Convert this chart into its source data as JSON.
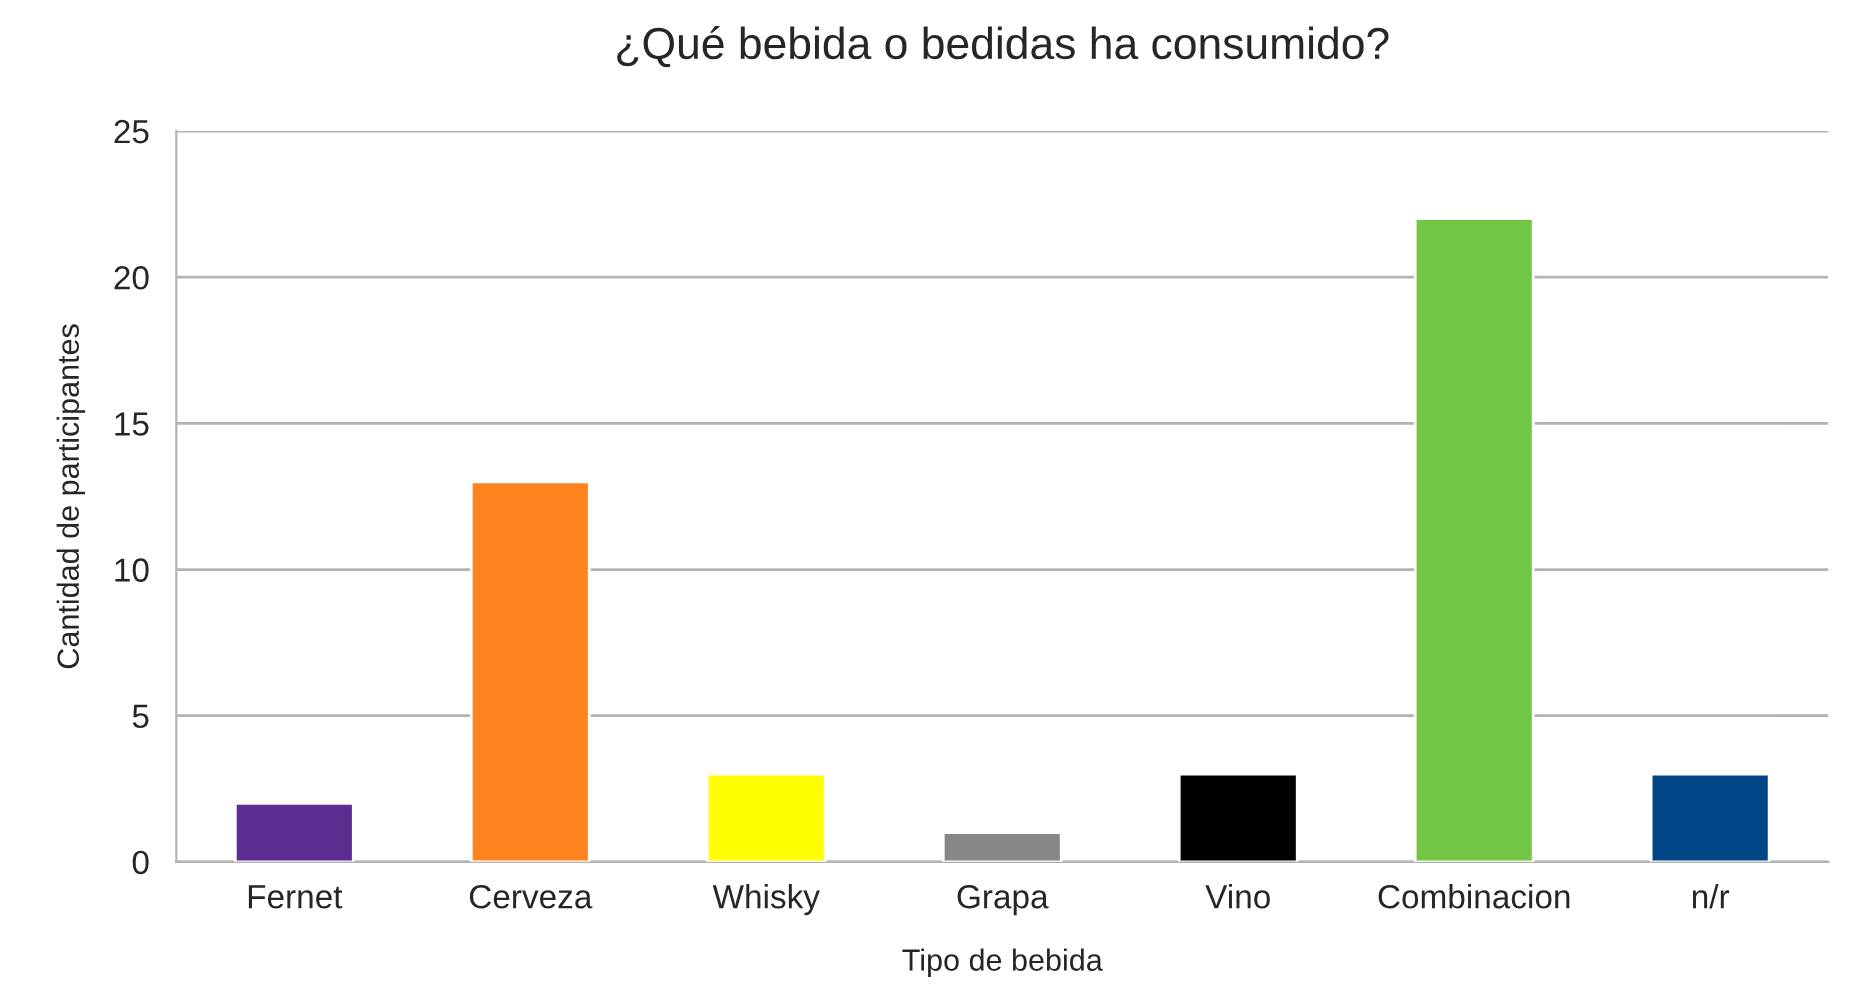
{
  "chart_data": {
    "type": "bar",
    "title": "¿Qué bebida o bedidas ha consumido?",
    "xlabel": "Tipo de bebida",
    "ylabel": "Cantidad de participantes",
    "categories": [
      "Fernet",
      "Cerveza",
      "Whisky",
      "Grapa",
      "Vino",
      "Combinacion",
      "n/r"
    ],
    "values": [
      2,
      13,
      3,
      1,
      3,
      22,
      3
    ],
    "colors": [
      "#5c2d91",
      "#ff8420",
      "#ffff00",
      "#878787",
      "#000000",
      "#73c546",
      "#004586"
    ],
    "ylim": [
      0,
      25
    ],
    "yticks": [
      0,
      5,
      10,
      15,
      20,
      25
    ],
    "grid": "y",
    "legend": false
  }
}
